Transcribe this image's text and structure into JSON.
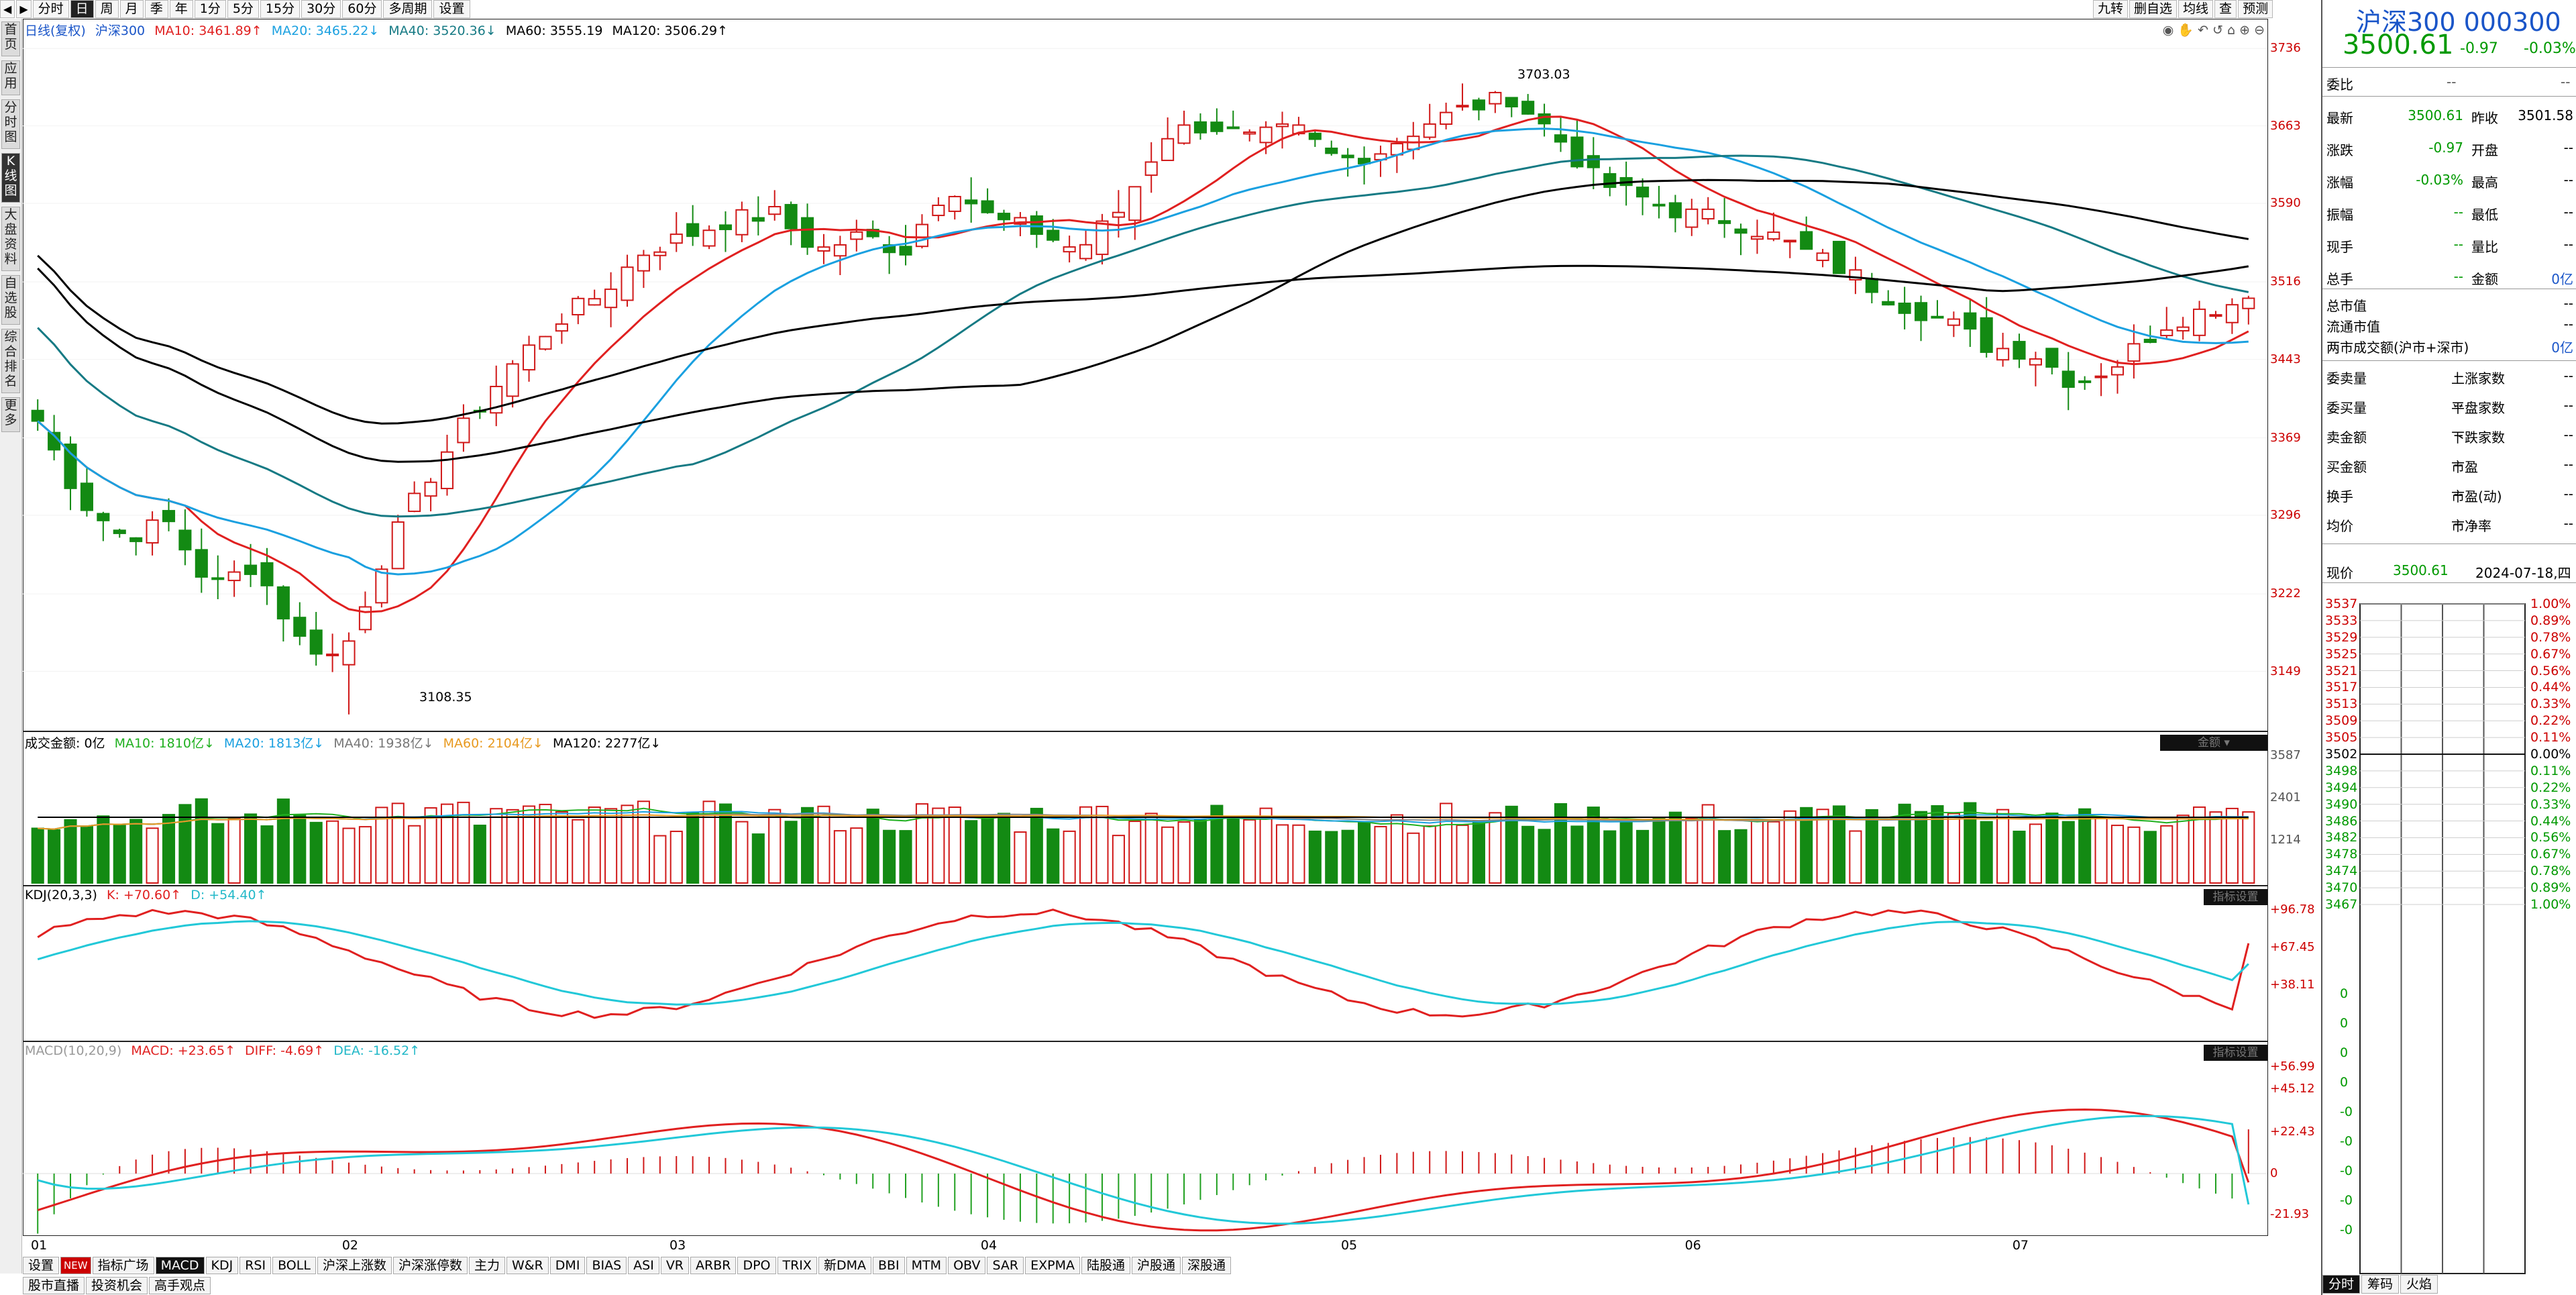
{
  "toolbar": {
    "tabs": [
      "分时",
      "日",
      "周",
      "月",
      "季",
      "年",
      "1分",
      "5分",
      "15分",
      "30分",
      "60分",
      "多周期",
      "设置"
    ],
    "active_index": 1,
    "right_tabs": [
      "九转",
      "删自选",
      "均线",
      "查",
      "预测"
    ]
  },
  "leftbar": {
    "tabs": [
      "首页",
      "应用",
      "分时图",
      "K线图",
      "大盘资料",
      "自选股",
      "综合排名",
      "更多"
    ],
    "active_index": 3
  },
  "main": {
    "legend": {
      "prefix": "日线(复权)",
      "name": "沪深300",
      "ma10": "MA10: 3461.89↑",
      "ma20": "MA20: 3465.22↓",
      "ma40": "MA40: 3520.36↓",
      "ma60": "MA60: 3555.19",
      "ma120": "MA120: 3506.29↑"
    },
    "high_label": "3703.03",
    "low_label": "3108.35",
    "y_ticks": [
      "3736",
      "3663",
      "3590",
      "3516",
      "3443",
      "3369",
      "3296",
      "3222",
      "3149"
    ],
    "x_ticks": [
      "01",
      "02",
      "03",
      "04",
      "05",
      "06",
      "07"
    ]
  },
  "volume": {
    "legend": {
      "label": "成交金额: 0亿",
      "ma10": "MA10: 1810亿↓",
      "ma20": "MA20: 1813亿↓",
      "ma40": "MA40: 1938亿↓",
      "ma60": "MA60: 2104亿↓",
      "ma120": "MA120: 2277亿↓"
    },
    "tab": "金额",
    "y_ticks": [
      "3587",
      "2401",
      "1214"
    ]
  },
  "kdj": {
    "legend": {
      "label": "KDJ(20,3,3)",
      "k": "K: +70.60↑",
      "d": "D: +54.40↑"
    },
    "y_ticks": [
      "+96.78",
      "+67.45",
      "+38.11"
    ]
  },
  "macd": {
    "legend": {
      "label": "MACD(10,20,9)",
      "macd": "MACD: +23.65↑",
      "diff": "DIFF: -4.69↑",
      "dea": "DEA: -16.52↑"
    },
    "y_ticks": [
      "+56.99",
      "+45.12",
      "+22.43",
      "0",
      "-21.93"
    ]
  },
  "bottom_tabs": [
    "设置",
    "NEW",
    "指标广场",
    "MACD",
    "KDJ",
    "RSI",
    "BOLL",
    "沪深上涨数",
    "沪深涨停数",
    "主力",
    "W&R",
    "DMI",
    "BIAS",
    "ASI",
    "VR",
    "ARBR",
    "DPO",
    "TRIX",
    "新DMA",
    "BBI",
    "MTM",
    "OBV",
    "SAR",
    "EXPMA",
    "陆股通",
    "沪股通",
    "深股通"
  ],
  "bottom_active": "MACD",
  "bottom_tabs2": [
    "股市直播",
    "投资机会",
    "高手观点"
  ],
  "right_panel": {
    "title": "沪深300 000300",
    "price": "3500.61",
    "change": "-0.97",
    "change_pct": "-0.03%",
    "weibi_label": "委比",
    "weibi_val1": "--",
    "weibi_val2": "--",
    "quote_rows": [
      {
        "l1": "最新",
        "v1": "3500.61",
        "l2": "昨收",
        "v2": "3501.58"
      },
      {
        "l1": "涨跌",
        "v1": "-0.97",
        "l2": "开盘",
        "v2": "--"
      },
      {
        "l1": "涨幅",
        "v1": "-0.03%",
        "l2": "最高",
        "v2": "--"
      },
      {
        "l1": "振幅",
        "v1": "--",
        "l2": "最低",
        "v2": "--"
      },
      {
        "l1": "现手",
        "v1": "--",
        "l2": "量比",
        "v2": "--"
      },
      {
        "l1": "总手",
        "v1": "--",
        "l2": "金额",
        "v2": "0亿"
      }
    ],
    "cap_rows": [
      {
        "l": "总市值",
        "v": "--"
      },
      {
        "l": "流通市值",
        "v": "--"
      },
      {
        "l": "两市成交额(沪市+深市)",
        "v": "0亿"
      }
    ],
    "breadth_rows": [
      {
        "l1": "委卖量",
        "v1": "--",
        "l2": "上涨家数",
        "v2": "--"
      },
      {
        "l1": "委买量",
        "v1": "--",
        "l2": "平盘家数",
        "v2": "--"
      },
      {
        "l1": "卖金额",
        "v1": "--",
        "l2": "下跌家数",
        "v2": "--"
      },
      {
        "l1": "买金额",
        "v1": "--",
        "l2": "市盈",
        "v2": "--"
      },
      {
        "l1": "换手",
        "v1": "--",
        "l2": "市盈(动)",
        "v2": "--"
      },
      {
        "l1": "均价",
        "v1": "--",
        "l2": "市净率",
        "v2": "--"
      }
    ],
    "now_label": "现价",
    "now_price": "3500.61",
    "now_date": "2024-07-18,四",
    "mini_left": [
      "3537",
      "3533",
      "3529",
      "3525",
      "3521",
      "3517",
      "3513",
      "3509",
      "3505",
      "3502",
      "3498",
      "3494",
      "3490",
      "3486",
      "3482",
      "3478",
      "3474",
      "3470",
      "3467",
      "0",
      "0",
      "0",
      "0",
      "-0",
      "-0",
      "-0",
      "-0",
      "-0"
    ],
    "mini_right": [
      "1.00%",
      "0.89%",
      "0.78%",
      "0.67%",
      "0.56%",
      "0.44%",
      "0.33%",
      "0.22%",
      "0.11%",
      "0.00%",
      "0.11%",
      "0.22%",
      "0.33%",
      "0.44%",
      "0.56%",
      "0.67%",
      "0.78%",
      "0.89%",
      "1.00%"
    ],
    "bottom_tabs": [
      "分时",
      "筹码",
      "火焰"
    ]
  },
  "colors": {
    "up": "#d01818",
    "down": "#138a13",
    "ma10": "#e02020",
    "ma20": "#1aa0e0",
    "ma40": "#167a84",
    "ma60": "#000000",
    "ma120": "#000000",
    "kdj_k": "#e02020",
    "kdj_d": "#22c8d8"
  },
  "chart_data": {
    "type": "candlestick",
    "title": "沪深300 日线(复权)",
    "x_months": [
      "01",
      "02",
      "03",
      "04",
      "05",
      "06",
      "07"
    ],
    "ylim": [
      3100,
      3745
    ],
    "high": 3703.03,
    "low": 3108.35,
    "close_last": 3500.61,
    "ma_last": {
      "MA10": 3461.89,
      "MA20": 3465.22,
      "MA40": 3520.36,
      "MA60": 3555.19,
      "MA120": 3506.29
    },
    "ohlc_anchor_closes": [
      3385,
      3310,
      3275,
      3290,
      3228,
      3250,
      3180,
      3160,
      3260,
      3330,
      3390,
      3440,
      3480,
      3505,
      3545,
      3560,
      3575,
      3580,
      3545,
      3560,
      3545,
      3610,
      3575,
      3565,
      3545,
      3585,
      3655,
      3665,
      3650,
      3660,
      3630,
      3640,
      3665,
      3680,
      3690,
      3655,
      3610,
      3595,
      3580,
      3575,
      3560,
      3540,
      3520,
      3495,
      3480,
      3455,
      3450,
      3420,
      3440,
      3475,
      3490,
      3500
    ],
    "volume_ylim": [
      0,
      3700
    ],
    "kdj": {
      "K_last": 70.6,
      "D_last": 54.4,
      "ylim": [
        0,
        100
      ]
    },
    "macd": {
      "MACD_last": 23.65,
      "DIFF_last": -4.69,
      "DEA_last": -16.52,
      "ylim": [
        -28,
        60
      ]
    }
  }
}
